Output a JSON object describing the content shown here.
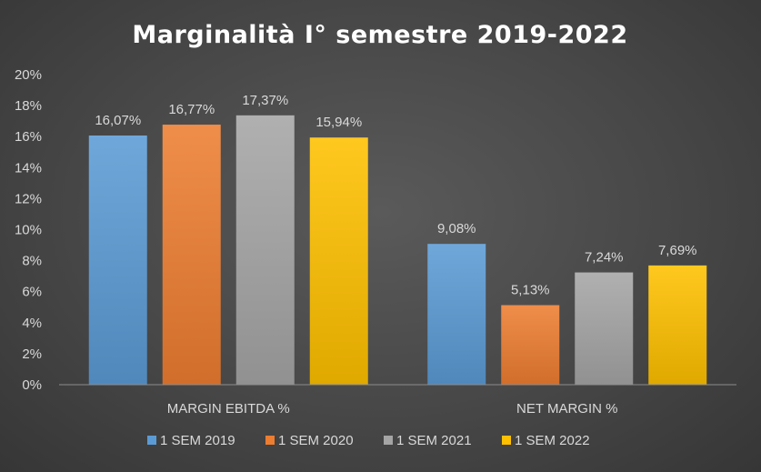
{
  "chart_data": {
    "type": "bar",
    "title": "Marginalità I° semestre 2019-2022",
    "categories": [
      "MARGIN EBITDA %",
      "NET MARGIN %"
    ],
    "series": [
      {
        "name": "1 SEM 2019",
        "color": "#5b9bd5",
        "values": [
          16.07,
          9.08
        ],
        "labels": [
          "16,07%",
          "9,08%"
        ]
      },
      {
        "name": "1 SEM 2020",
        "color": "#ed7d31",
        "values": [
          16.77,
          5.13
        ],
        "labels": [
          "16,77%",
          "5,13%"
        ]
      },
      {
        "name": "1 SEM 2021",
        "color": "#a5a5a5",
        "values": [
          17.37,
          7.24
        ],
        "labels": [
          "17,37%",
          "7,24%"
        ]
      },
      {
        "name": "1 SEM 2022",
        "color": "#ffc000",
        "values": [
          15.94,
          7.69
        ],
        "labels": [
          "15,94%",
          "7,69%"
        ]
      }
    ],
    "ylim": [
      0,
      20
    ],
    "yticks": [
      "0%",
      "2%",
      "4%",
      "6%",
      "8%",
      "10%",
      "12%",
      "14%",
      "16%",
      "18%",
      "20%"
    ],
    "grid": false,
    "legend": "bottom"
  }
}
